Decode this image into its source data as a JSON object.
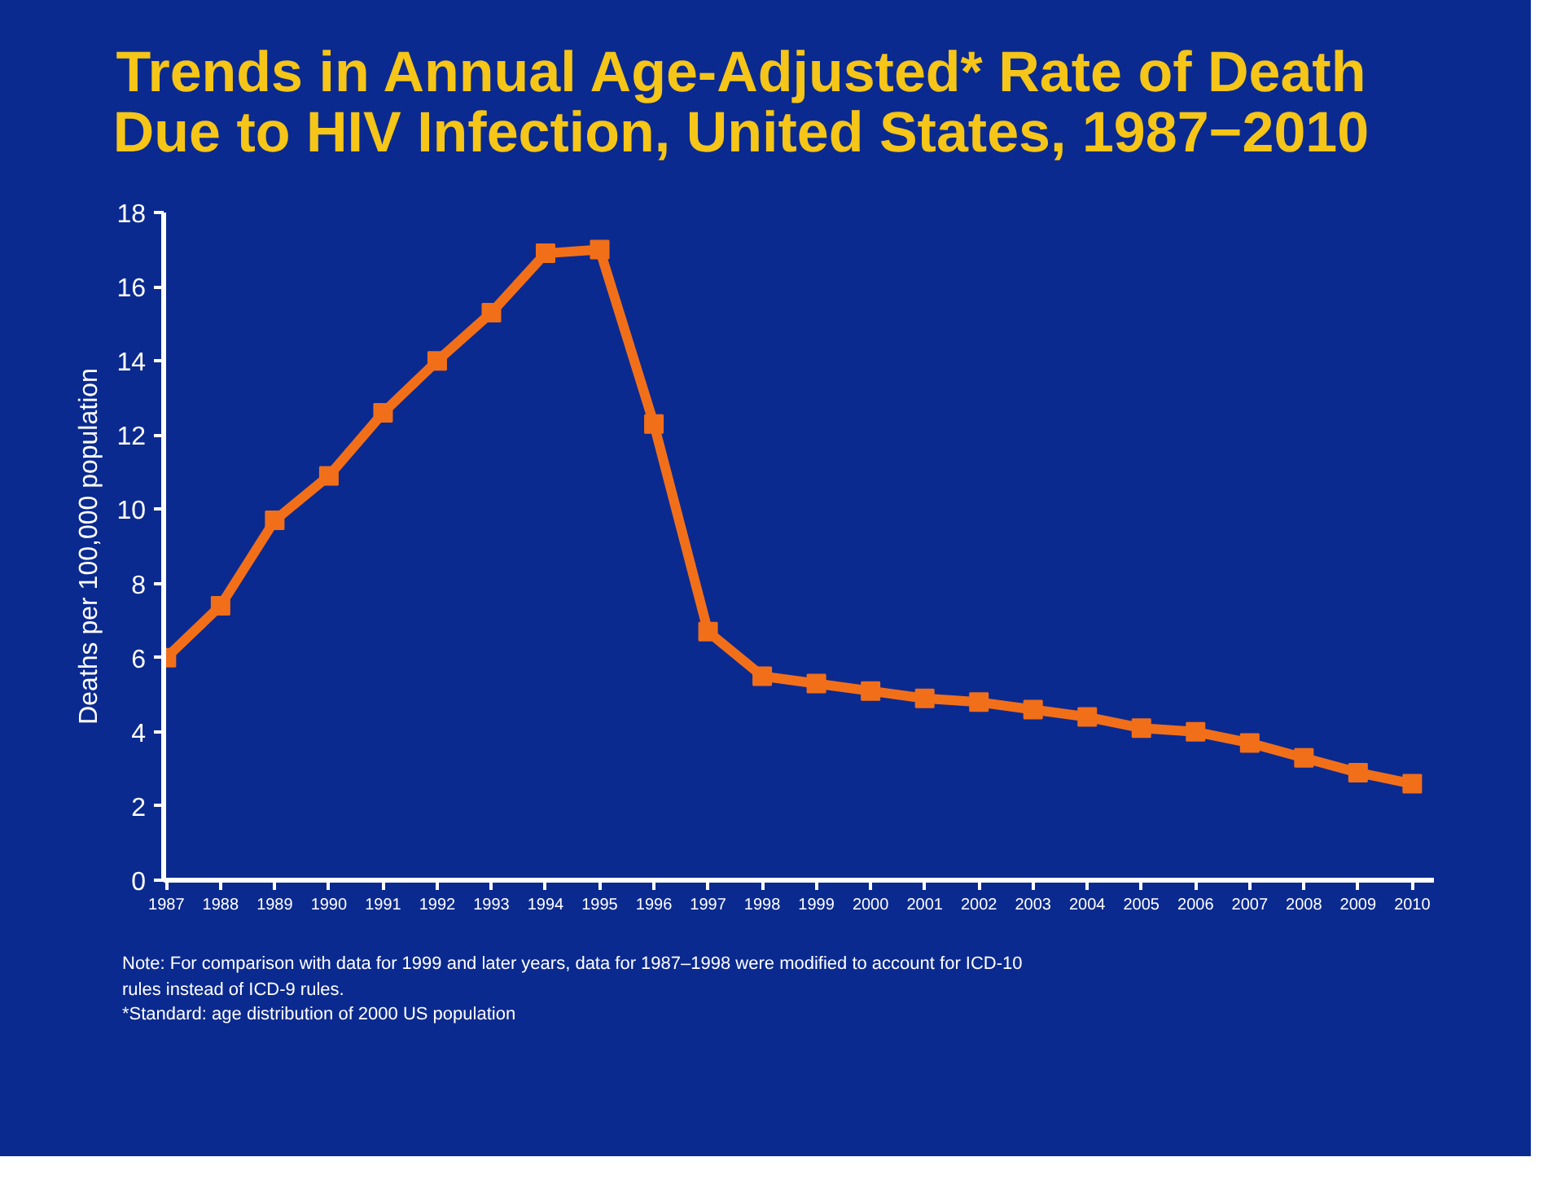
{
  "chart_data": {
    "type": "line",
    "title": "Trends in Annual Age-Adjusted* Rate of Death Due to HIV Infection, United States, 1987−2010",
    "ylabel": "Deaths per 100,000 population",
    "categories": [
      "1987",
      "1988",
      "1989",
      "1990",
      "1991",
      "1992",
      "1993",
      "1994",
      "1995",
      "1996",
      "1997",
      "1998",
      "1999",
      "2000",
      "2001",
      "2002",
      "2003",
      "2004",
      "2005",
      "2006",
      "2007",
      "2008",
      "2009",
      "2010"
    ],
    "series": [
      {
        "color": "#f26f1a",
        "values": [
          6.0,
          7.4,
          9.7,
          10.9,
          12.6,
          14.0,
          15.3,
          16.9,
          17.0,
          12.3,
          6.7,
          5.5,
          5.3,
          5.1,
          4.9,
          4.8,
          4.6,
          4.4,
          4.1,
          4.0,
          3.7,
          3.3,
          2.9,
          2.6
        ]
      }
    ],
    "ylim": [
      0,
      18
    ],
    "yticks": [
      0,
      2,
      4,
      6,
      8,
      10,
      12,
      14,
      16,
      18
    ],
    "grid": false,
    "marker": "square",
    "line_style": "solid",
    "annotations": [
      "Note: For comparison with data for 1999 and later years, data for 1987–1998 were modified to account for ICD-10 rules instead of ICD-9 rules.",
      "*Standard: age distribution of 2000 US population"
    ]
  }
}
